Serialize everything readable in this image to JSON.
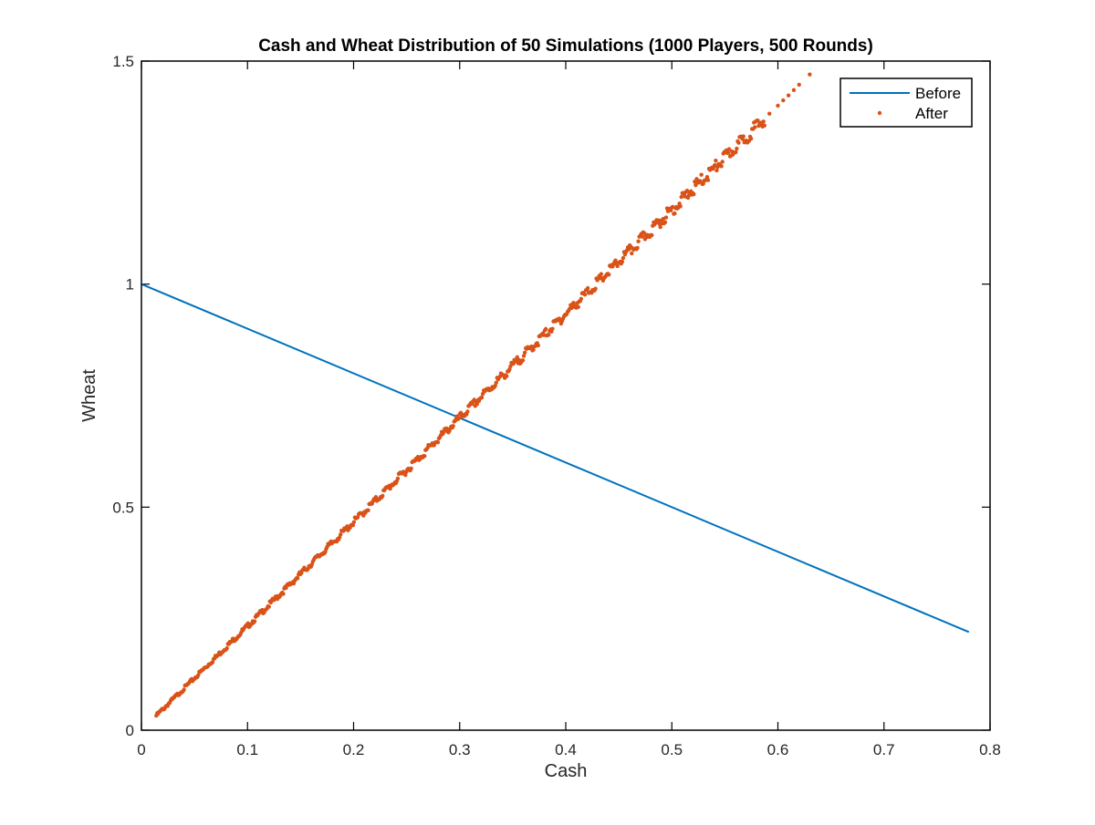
{
  "chart_data": {
    "type": "scatter",
    "title": "Cash and Wheat Distribution of 50 Simulations (1000 Players, 500 Rounds)",
    "xlabel": "Cash",
    "ylabel": "Wheat",
    "xlim": [
      0,
      0.8
    ],
    "ylim": [
      0,
      1.5
    ],
    "xticks": [
      "0",
      "0.1",
      "0.2",
      "0.3",
      "0.4",
      "0.5",
      "0.6",
      "0.7",
      "0.8"
    ],
    "yticks": [
      "0",
      "0.5",
      "1",
      "1.5"
    ],
    "legend_position": "top-right",
    "grid": false,
    "series": [
      {
        "name": "Before",
        "style": "line",
        "color": "#0072BD",
        "x": [
          0,
          0.78
        ],
        "y": [
          1.0,
          0.22
        ]
      },
      {
        "name": "After",
        "style": "dots",
        "color": "#D95319",
        "x_range": [
          0.014,
          0.63
        ],
        "slope": 2.333,
        "intercept": 0.0,
        "sparse_points": [
          {
            "x": 0.592,
            "y": 1.382
          },
          {
            "x": 0.6,
            "y": 1.4
          },
          {
            "x": 0.605,
            "y": 1.412
          },
          {
            "x": 0.61,
            "y": 1.423
          },
          {
            "x": 0.615,
            "y": 1.435
          },
          {
            "x": 0.62,
            "y": 1.447
          },
          {
            "x": 0.63,
            "y": 1.47
          }
        ]
      }
    ]
  }
}
